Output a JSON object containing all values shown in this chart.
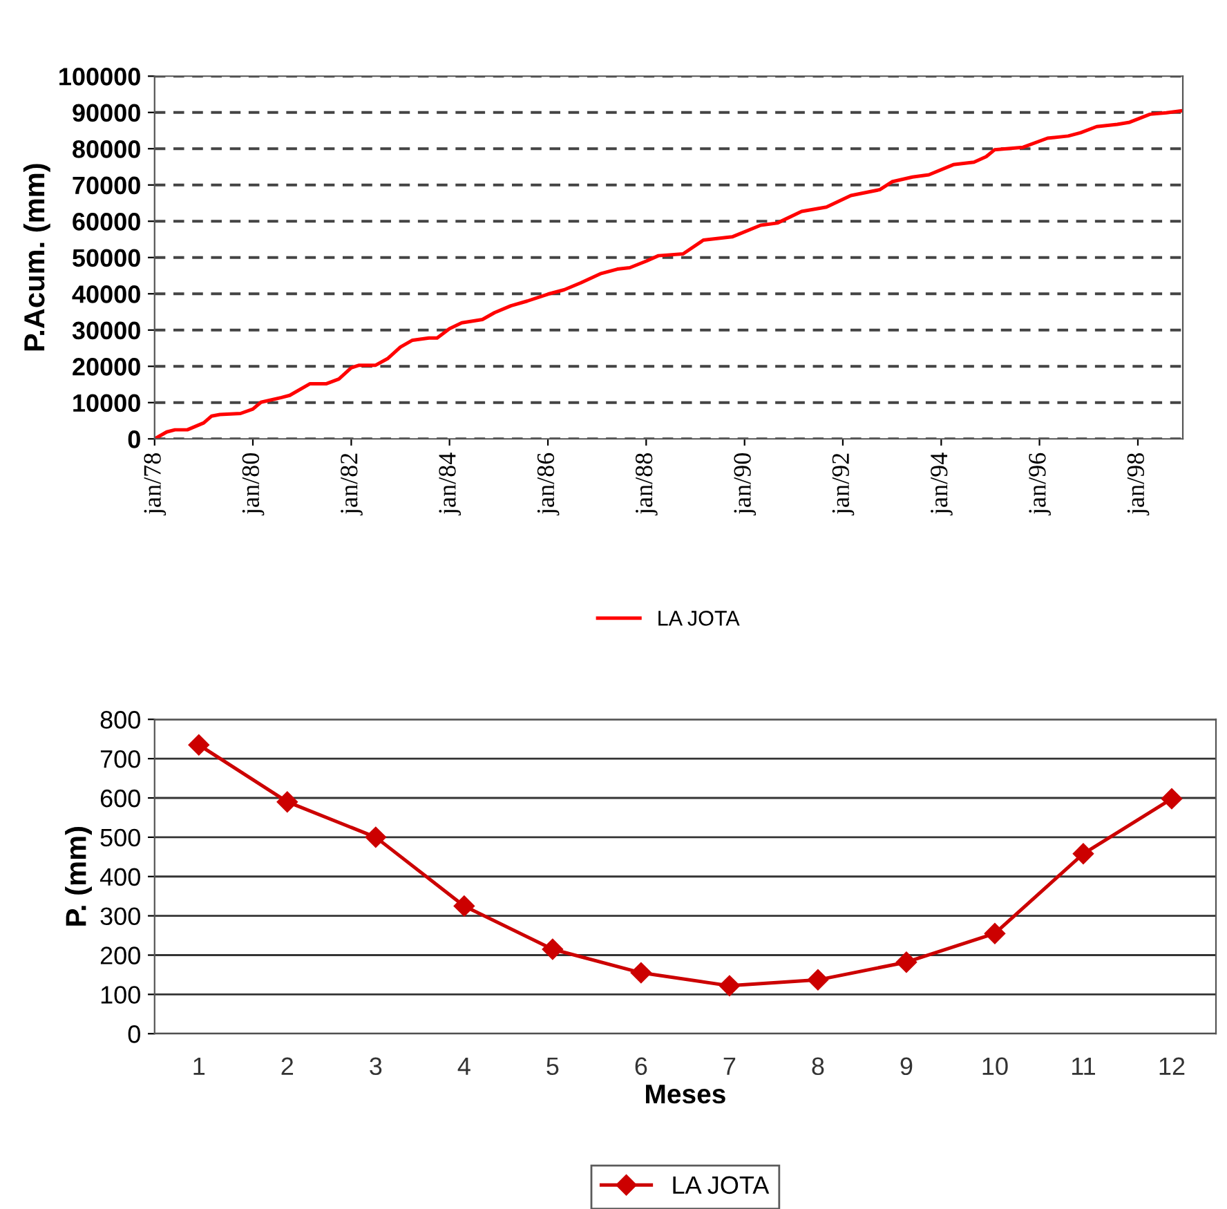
{
  "chart_data": [
    {
      "type": "line",
      "ylabel": "P.Acum. (mm)",
      "x": [
        "1978-01",
        "1978-04",
        "1978-06",
        "1978-09",
        "1979-01",
        "1979-03",
        "1979-05",
        "1979-10",
        "1980-01",
        "1980-03",
        "1980-08",
        "1980-10",
        "1981-03",
        "1981-07",
        "1981-10",
        "1982-01",
        "1982-03",
        "1982-07",
        "1982-10",
        "1983-01",
        "1983-04",
        "1983-08",
        "1983-10",
        "1984-01",
        "1984-04",
        "1984-09",
        "1984-12",
        "1985-04",
        "1985-08",
        "1986-01",
        "1986-05",
        "1986-09",
        "1987-02",
        "1987-06",
        "1987-09",
        "1988-01",
        "1988-04",
        "1988-10",
        "1989-03",
        "1989-10",
        "1990-05",
        "1990-09",
        "1991-03",
        "1991-09",
        "1992-03",
        "1992-10",
        "1993-01",
        "1993-06",
        "1993-10",
        "1994-04",
        "1994-09",
        "1994-12",
        "1995-02",
        "1995-09",
        "1996-03",
        "1996-08",
        "1996-11",
        "1997-03",
        "1997-08",
        "1997-11",
        "1998-04",
        "1998-08",
        "1998-12"
      ],
      "series": [
        {
          "name": "LA JOTA",
          "color": "#ff0000",
          "values": [
            0,
            1900,
            2500,
            2500,
            4400,
            6300,
            6700,
            7000,
            8200,
            10100,
            11400,
            12000,
            15200,
            15200,
            16500,
            19600,
            20300,
            20300,
            22200,
            25300,
            27200,
            27800,
            27800,
            30400,
            32000,
            32900,
            34800,
            36700,
            38000,
            39900,
            41100,
            43000,
            45600,
            46800,
            47200,
            49000,
            50500,
            51000,
            54800,
            55700,
            58900,
            59500,
            62700,
            63900,
            67100,
            68700,
            70900,
            72200,
            72800,
            75600,
            76300,
            77800,
            79700,
            80400,
            82900,
            83500,
            84400,
            86100,
            86700,
            87300,
            89500,
            89900,
            90500
          ]
        }
      ],
      "xlim": [
        "1978-01",
        "1998-12"
      ],
      "xticks": [
        {
          "value": "1978-01",
          "label": "jan/78"
        },
        {
          "value": "1980-01",
          "label": "jan/80"
        },
        {
          "value": "1982-01",
          "label": "jan/82"
        },
        {
          "value": "1984-01",
          "label": "jan/84"
        },
        {
          "value": "1986-01",
          "label": "jan/86"
        },
        {
          "value": "1988-01",
          "label": "jan/88"
        },
        {
          "value": "1990-01",
          "label": "jan/90"
        },
        {
          "value": "1992-01",
          "label": "jan/92"
        },
        {
          "value": "1994-01",
          "label": "jan/94"
        },
        {
          "value": "1996-01",
          "label": "jan/96"
        },
        {
          "value": "1998-01",
          "label": "jan/98"
        }
      ],
      "ylim": [
        0,
        100000
      ],
      "yticks": [
        0,
        10000,
        20000,
        30000,
        40000,
        50000,
        60000,
        70000,
        80000,
        90000,
        100000
      ],
      "grid": "y",
      "legend": "bottom",
      "marker": "none",
      "line_style": "solid"
    },
    {
      "type": "line",
      "ylabel": "P. (mm)",
      "xlabel": "Meses",
      "categories": [
        "1",
        "2",
        "3",
        "4",
        "5",
        "6",
        "7",
        "8",
        "9",
        "10",
        "11",
        "12"
      ],
      "series": [
        {
          "name": "LA JOTA",
          "color": "#cc0000",
          "values": [
            735,
            590,
            500,
            325,
            215,
            155,
            122,
            137,
            182,
            255,
            458,
            598
          ]
        }
      ],
      "ylim": [
        0,
        800
      ],
      "yticks": [
        0,
        100,
        200,
        300,
        400,
        500,
        600,
        700,
        800
      ],
      "grid": "y",
      "legend": "bottom",
      "marker": "diamond",
      "line_style": "solid"
    }
  ]
}
